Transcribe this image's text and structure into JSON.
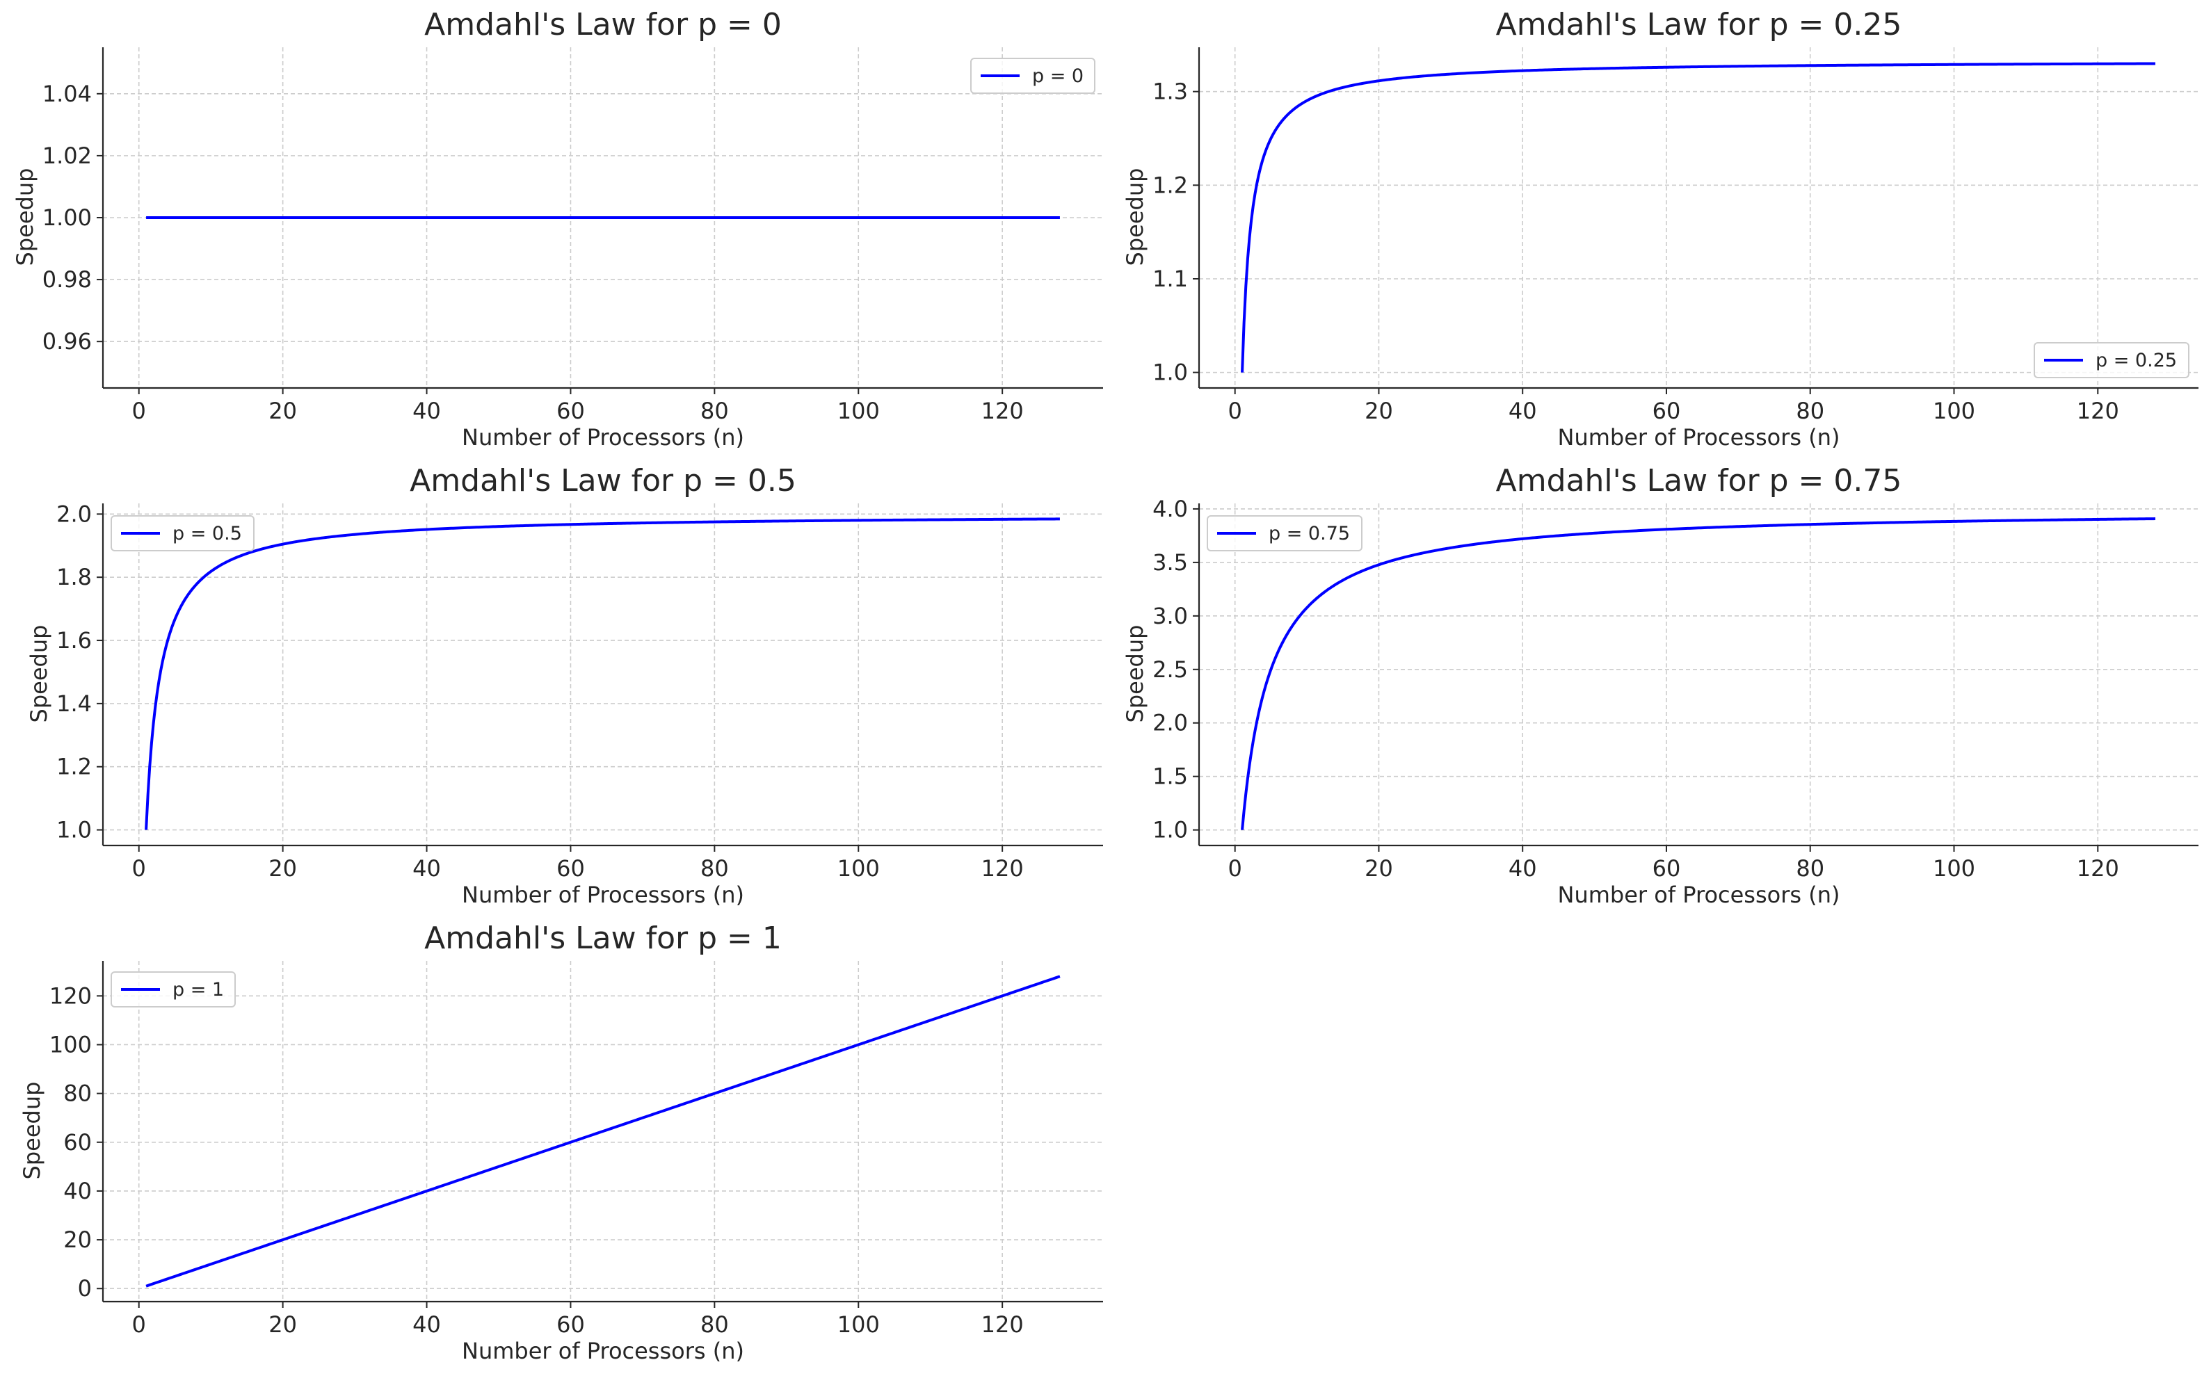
{
  "chart_data": [
    {
      "type": "line",
      "title": "Amdahl's Law for p = 0",
      "xlabel": "Number of Processors (n)",
      "ylabel": "Speedup",
      "xlim": [
        -5,
        134
      ],
      "ylim": [
        0.945,
        1.055
      ],
      "xticks": [
        0,
        20,
        40,
        60,
        80,
        100,
        120
      ],
      "xtick_labels": [
        "0",
        "20",
        "40",
        "60",
        "80",
        "100",
        "120"
      ],
      "yticks": [
        0.96,
        0.98,
        1.0,
        1.02,
        1.04
      ],
      "ytick_labels": [
        "0.96",
        "0.98",
        "1.00",
        "1.02",
        "1.04"
      ],
      "grid": true,
      "legend_position": "upper right",
      "series": [
        {
          "name": "p = 0",
          "color": "#0000ff",
          "p": 0,
          "x_range": [
            1,
            128
          ],
          "formula": "1/((1-p)+p/n)"
        }
      ]
    },
    {
      "type": "line",
      "title": "Amdahl's Law for p = 0.25",
      "xlabel": "Number of Processors (n)",
      "ylabel": "Speedup",
      "xlim": [
        -5,
        134
      ],
      "ylim": [
        0.9834,
        1.3473
      ],
      "xticks": [
        0,
        20,
        40,
        60,
        80,
        100,
        120
      ],
      "xtick_labels": [
        "0",
        "20",
        "40",
        "60",
        "80",
        "100",
        "120"
      ],
      "yticks": [
        1.0,
        1.1,
        1.2,
        1.3
      ],
      "ytick_labels": [
        "1.0",
        "1.1",
        "1.2",
        "1.3"
      ],
      "grid": true,
      "legend_position": "lower right",
      "series": [
        {
          "name": "p = 0.25",
          "color": "#0000ff",
          "p": 0.25,
          "x_range": [
            1,
            128
          ],
          "formula": "1/((1-p)+p/n)"
        }
      ]
    },
    {
      "type": "line",
      "title": "Amdahl's Law for p = 0.5",
      "xlabel": "Number of Processors (n)",
      "ylabel": "Speedup",
      "xlim": [
        -5,
        134
      ],
      "ylim": [
        0.9506,
        2.0338
      ],
      "xticks": [
        0,
        20,
        40,
        60,
        80,
        100,
        120
      ],
      "xtick_labels": [
        "0",
        "20",
        "40",
        "60",
        "80",
        "100",
        "120"
      ],
      "yticks": [
        1.0,
        1.2,
        1.4,
        1.6,
        1.8,
        2.0
      ],
      "ytick_labels": [
        "1.0",
        "1.2",
        "1.4",
        "1.6",
        "1.8",
        "2.0"
      ],
      "grid": true,
      "legend_position": "upper left",
      "series": [
        {
          "name": "p = 0.5",
          "color": "#0000ff",
          "p": 0.5,
          "x_range": [
            1,
            128
          ],
          "formula": "1/((1-p)+p/n)"
        }
      ]
    },
    {
      "type": "line",
      "title": "Amdahl's Law for p = 0.75",
      "xlabel": "Number of Processors (n)",
      "ylabel": "Speedup",
      "xlim": [
        -5,
        134
      ],
      "ylim": [
        0.8547,
        4.0516
      ],
      "xticks": [
        0,
        20,
        40,
        60,
        80,
        100,
        120
      ],
      "xtick_labels": [
        "0",
        "20",
        "40",
        "60",
        "80",
        "100",
        "120"
      ],
      "yticks": [
        1.0,
        1.5,
        2.0,
        2.5,
        3.0,
        3.5,
        4.0
      ],
      "ytick_labels": [
        "1.0",
        "1.5",
        "2.0",
        "2.5",
        "3.0",
        "3.5",
        "4.0"
      ],
      "grid": true,
      "legend_position": "upper left",
      "series": [
        {
          "name": "p = 0.75",
          "color": "#0000ff",
          "p": 0.75,
          "x_range": [
            1,
            128
          ],
          "formula": "1/((1-p)+p/n)"
        }
      ]
    },
    {
      "type": "line",
      "title": "Amdahl's Law for p = 1",
      "xlabel": "Number of Processors (n)",
      "ylabel": "Speedup",
      "xlim": [
        -5,
        134
      ],
      "ylim": [
        -5.35,
        134.35
      ],
      "xticks": [
        0,
        20,
        40,
        60,
        80,
        100,
        120
      ],
      "xtick_labels": [
        "0",
        "20",
        "40",
        "60",
        "80",
        "100",
        "120"
      ],
      "yticks": [
        0,
        20,
        40,
        60,
        80,
        100,
        120
      ],
      "ytick_labels": [
        "0",
        "20",
        "40",
        "60",
        "80",
        "100",
        "120"
      ],
      "grid": true,
      "legend_position": "upper left",
      "series": [
        {
          "name": "p = 1",
          "color": "#0000ff",
          "p": 1,
          "x_range": [
            1,
            128
          ],
          "formula": "1/((1-p)+p/n)"
        }
      ]
    }
  ]
}
